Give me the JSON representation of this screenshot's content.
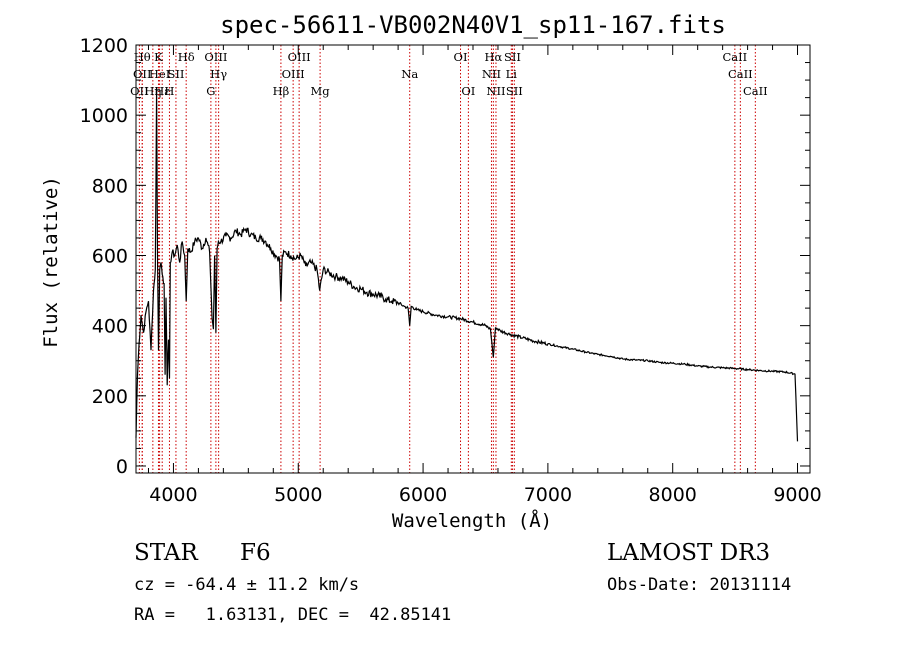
{
  "chart_data": {
    "type": "line",
    "title": "spec-56611-VB002N40V1_sp11-167.fits",
    "xlabel": "Wavelength (Å)",
    "ylabel": "Flux (relative)",
    "xlim": [
      3700,
      9100
    ],
    "ylim": [
      -20,
      1200
    ],
    "x_ticks": [
      4000,
      5000,
      6000,
      7000,
      8000,
      9000
    ],
    "x_tick_labels": [
      "4000",
      "5000",
      "6000",
      "7000",
      "8000",
      "9000"
    ],
    "y_ticks": [
      0,
      200,
      400,
      600,
      800,
      1000,
      1200
    ],
    "y_tick_labels": [
      "0",
      "200",
      "400",
      "600",
      "800",
      "1000",
      "1200"
    ],
    "series": [
      {
        "name": "flux",
        "x": [
          3700,
          3712,
          3725,
          3740,
          3760,
          3780,
          3800,
          3820,
          3840,
          3855,
          3865,
          3872,
          3880,
          3890,
          3900,
          3915,
          3925,
          3933,
          3940,
          3950,
          3960,
          3968,
          3975,
          3990,
          4010,
          4030,
          4050,
          4070,
          4090,
          4102,
          4115,
          4140,
          4170,
          4200,
          4230,
          4260,
          4290,
          4310,
          4320,
          4330,
          4340,
          4350,
          4360,
          4380,
          4420,
          4460,
          4500,
          4540,
          4580,
          4620,
          4660,
          4700,
          4740,
          4780,
          4820,
          4850,
          4861,
          4872,
          4900,
          4940,
          4980,
          5020,
          5060,
          5100,
          5150,
          5172,
          5200,
          5250,
          5300,
          5350,
          5400,
          5450,
          5500,
          5550,
          5600,
          5650,
          5700,
          5750,
          5800,
          5850,
          5880,
          5893,
          5905,
          5950,
          6000,
          6100,
          6200,
          6300,
          6400,
          6500,
          6540,
          6563,
          6580,
          6620,
          6700,
          6800,
          6900,
          7000,
          7100,
          7200,
          7300,
          7400,
          7500,
          7600,
          7700,
          7800,
          7900,
          8000,
          8100,
          8200,
          8300,
          8400,
          8500,
          8600,
          8700,
          8800,
          8900,
          8980,
          9000
        ],
        "values": [
          80,
          260,
          350,
          430,
          380,
          440,
          470,
          330,
          500,
          560,
          1080,
          600,
          330,
          560,
          580,
          540,
          520,
          260,
          480,
          230,
          360,
          250,
          580,
          610,
          600,
          630,
          580,
          640,
          600,
          470,
          620,
          610,
          640,
          650,
          620,
          650,
          610,
          420,
          390,
          600,
          380,
          620,
          640,
          640,
          655,
          650,
          670,
          660,
          675,
          660,
          650,
          650,
          640,
          620,
          600,
          590,
          470,
          600,
          610,
          600,
          590,
          600,
          570,
          580,
          560,
          500,
          560,
          550,
          540,
          535,
          525,
          510,
          505,
          495,
          490,
          485,
          475,
          470,
          465,
          455,
          450,
          400,
          455,
          445,
          440,
          430,
          425,
          420,
          410,
          400,
          390,
          310,
          395,
          385,
          375,
          365,
          355,
          348,
          340,
          333,
          325,
          318,
          313,
          305,
          302,
          300,
          295,
          293,
          290,
          285,
          282,
          280,
          278,
          275,
          272,
          270,
          268,
          262,
          70
        ]
      }
    ],
    "line_markers": [
      {
        "label": "OII",
        "wavelength": 3727,
        "row": 2
      },
      {
        "label": "Hθ",
        "wavelength": 3750,
        "row": 0
      },
      {
        "label": "OII",
        "wavelength": 3750,
        "row": 1
      },
      {
        "label": "Hη",
        "wavelength": 3835,
        "row": 2
      },
      {
        "label": "K",
        "wavelength": 3880,
        "row": 0
      },
      {
        "label": "HeI",
        "wavelength": 3889,
        "row": 1
      },
      {
        "label": "Hε",
        "wavelength": 3910,
        "row": 2
      },
      {
        "label": "H",
        "wavelength": 3968,
        "row": 2
      },
      {
        "label": "SII",
        "wavelength": 4020,
        "row": 1
      },
      {
        "label": "Hδ",
        "wavelength": 4102,
        "row": 0
      },
      {
        "label": "G",
        "wavelength": 4300,
        "row": 2
      },
      {
        "label": "OIII",
        "wavelength": 4340,
        "row": 0
      },
      {
        "label": "Hγ",
        "wavelength": 4362,
        "row": 1
      },
      {
        "label": "Hβ",
        "wavelength": 4861,
        "row": 2
      },
      {
        "label": "OIII",
        "wavelength": 4959,
        "row": 1
      },
      {
        "label": "OIII",
        "wavelength": 5007,
        "row": 0
      },
      {
        "label": "Mg",
        "wavelength": 5175,
        "row": 2
      },
      {
        "label": "Na",
        "wavelength": 5893,
        "row": 1
      },
      {
        "label": "OI",
        "wavelength": 6300,
        "row": 0
      },
      {
        "label": "OI",
        "wavelength": 6363,
        "row": 2
      },
      {
        "label": "Hα",
        "wavelength": 6563,
        "row": 0
      },
      {
        "label": "NII",
        "wavelength": 6548,
        "row": 1
      },
      {
        "label": "NII",
        "wavelength": 6584,
        "row": 2
      },
      {
        "label": "SII",
        "wavelength": 6716,
        "row": 0
      },
      {
        "label": "Li",
        "wavelength": 6707,
        "row": 1
      },
      {
        "label": "SII",
        "wavelength": 6731,
        "row": 2
      },
      {
        "label": "CaII",
        "wavelength": 8498,
        "row": 0
      },
      {
        "label": "CaII",
        "wavelength": 8542,
        "row": 1
      },
      {
        "label": "CaII",
        "wavelength": 8662,
        "row": 2
      }
    ]
  },
  "info": {
    "object_class": "STAR",
    "subclass": "F6",
    "survey": "LAMOST DR3",
    "cz": "cz = -64.4 ± 11.2 km/s",
    "obs_date": "Obs-Date: 20131114",
    "coords": "RA =   1.63131, DEC =  42.85141"
  },
  "colors": {
    "spectrum": "#000000",
    "marker": "#cc0000",
    "axis": "#000000",
    "background": "#ffffff"
  }
}
